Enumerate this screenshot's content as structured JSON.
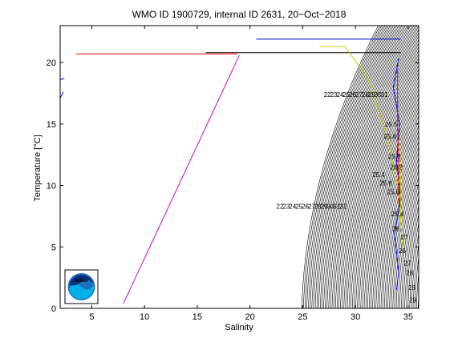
{
  "chart_data": {
    "type": "line",
    "title": "WMO ID 1900729, internal ID 2631, 20−Oct−2018",
    "xlabel": "Salinity",
    "ylabel": "Temperature [°C]",
    "xlim": [
      2,
      36
    ],
    "ylim": [
      0,
      23
    ],
    "xticks": [
      5,
      10,
      15,
      20,
      25,
      30,
      35
    ],
    "yticks": [
      0,
      5,
      10,
      15,
      20
    ],
    "grid": false,
    "series": [
      {
        "color": "#ff0000",
        "points": [
          [
            3.5,
            20.7
          ],
          [
            7,
            20.7
          ],
          [
            18.8,
            20.7
          ]
        ]
      },
      {
        "color": "#cc00cc",
        "points": [
          [
            8,
            0.4
          ],
          [
            19,
            20.6
          ]
        ]
      },
      {
        "color": "#0000ff",
        "points": [
          [
            2,
            18.6
          ],
          [
            2.4,
            18.7
          ]
        ]
      },
      {
        "color": "#0000ff",
        "points": [
          [
            2,
            17.1
          ],
          [
            2.3,
            17.6
          ]
        ]
      },
      {
        "color": "#000000",
        "points": [
          [
            15.8,
            20.8
          ],
          [
            34.3,
            20.8
          ]
        ]
      },
      {
        "color": "#0000cc",
        "points": [
          [
            20.6,
            21.9
          ],
          [
            34.3,
            21.9
          ]
        ]
      },
      {
        "color": "#cccc00",
        "points": [
          [
            26.6,
            21.3
          ],
          [
            29,
            21.3
          ],
          [
            31.2,
            18.7
          ],
          [
            33,
            14
          ],
          [
            34,
            10
          ],
          [
            34.5,
            5
          ]
        ]
      },
      {
        "color": "#0000ff",
        "points": [
          [
            34.1,
            20.3
          ],
          [
            33.6,
            18
          ],
          [
            34.2,
            15
          ],
          [
            33.9,
            12
          ],
          [
            34.3,
            9
          ],
          [
            33.7,
            6
          ],
          [
            34.1,
            3
          ],
          [
            33.9,
            1.5
          ]
        ]
      },
      {
        "color": "#ff0000",
        "points": [
          [
            34.0,
            19.5
          ],
          [
            34.0,
            15
          ],
          [
            34.1,
            11
          ],
          [
            34.1,
            8.5
          ]
        ]
      },
      {
        "color": "#cccc00",
        "points": [
          [
            34.2,
            14
          ],
          [
            34.3,
            10
          ],
          [
            34.3,
            7
          ]
        ]
      }
    ],
    "density_labels": [
      {
        "text": "22",
        "x": 27,
        "y": 17.2
      },
      {
        "text": "23",
        "x": 27.6,
        "y": 17.2
      },
      {
        "text": "24",
        "x": 28.2,
        "y": 17.2
      },
      {
        "text": "25",
        "x": 28.8,
        "y": 17.2
      },
      {
        "text": "26",
        "x": 29.4,
        "y": 17.2
      },
      {
        "text": "27",
        "x": 30,
        "y": 17.2
      },
      {
        "text": "28",
        "x": 30.6,
        "y": 17.2
      },
      {
        "text": "29",
        "x": 31.2,
        "y": 17.2
      },
      {
        "text": "30",
        "x": 31.8,
        "y": 17.2
      },
      {
        "text": "31",
        "x": 32.4,
        "y": 17.2
      },
      {
        "text": "25.5",
        "x": 32.8,
        "y": 14.8
      },
      {
        "text": "25.6",
        "x": 32.7,
        "y": 13.8
      },
      {
        "text": "25.8",
        "x": 33.1,
        "y": 12.2
      },
      {
        "text": "26.2",
        "x": 33.3,
        "y": 11.3
      },
      {
        "text": "25.4",
        "x": 31.6,
        "y": 10.7
      },
      {
        "text": "25.6",
        "x": 32.3,
        "y": 10.0
      },
      {
        "text": "25.8",
        "x": 33.0,
        "y": 9.3
      },
      {
        "text": "22",
        "x": 22.5,
        "y": 8.1
      },
      {
        "text": "23",
        "x": 23.1,
        "y": 8.1
      },
      {
        "text": "24",
        "x": 23.7,
        "y": 8.1
      },
      {
        "text": "25",
        "x": 24.3,
        "y": 8.1
      },
      {
        "text": "26",
        "x": 24.9,
        "y": 8.1
      },
      {
        "text": "27",
        "x": 25.5,
        "y": 8.1
      },
      {
        "text": "28",
        "x": 26.1,
        "y": 8.1
      },
      {
        "text": "29",
        "x": 26.7,
        "y": 8.1
      },
      {
        "text": "30",
        "x": 27.3,
        "y": 8.1
      },
      {
        "text": "31",
        "x": 27.9,
        "y": 8.1
      },
      {
        "text": "32",
        "x": 28.5,
        "y": 8.1
      },
      {
        "text": "25.4",
        "x": 33.4,
        "y": 7.5
      },
      {
        "text": "26",
        "x": 33.5,
        "y": 6.3
      },
      {
        "text": "27",
        "x": 34.3,
        "y": 5.6
      },
      {
        "text": "26",
        "x": 34.1,
        "y": 4.5
      },
      {
        "text": "27",
        "x": 34.6,
        "y": 3.5
      },
      {
        "text": "28",
        "x": 34.8,
        "y": 2.7
      },
      {
        "text": "28",
        "x": 35.0,
        "y": 1.5
      },
      {
        "text": "29",
        "x": 35.1,
        "y": 0.5
      }
    ]
  },
  "logo": {
    "text": "NOAA",
    "colors": {
      "outer": "#1e6fc0",
      "inner": "#00b0e8",
      "top": "#0a2f7a"
    }
  },
  "colors": {
    "axis": "#000000",
    "isopycnal": "#000000",
    "background": "#ffffff"
  }
}
